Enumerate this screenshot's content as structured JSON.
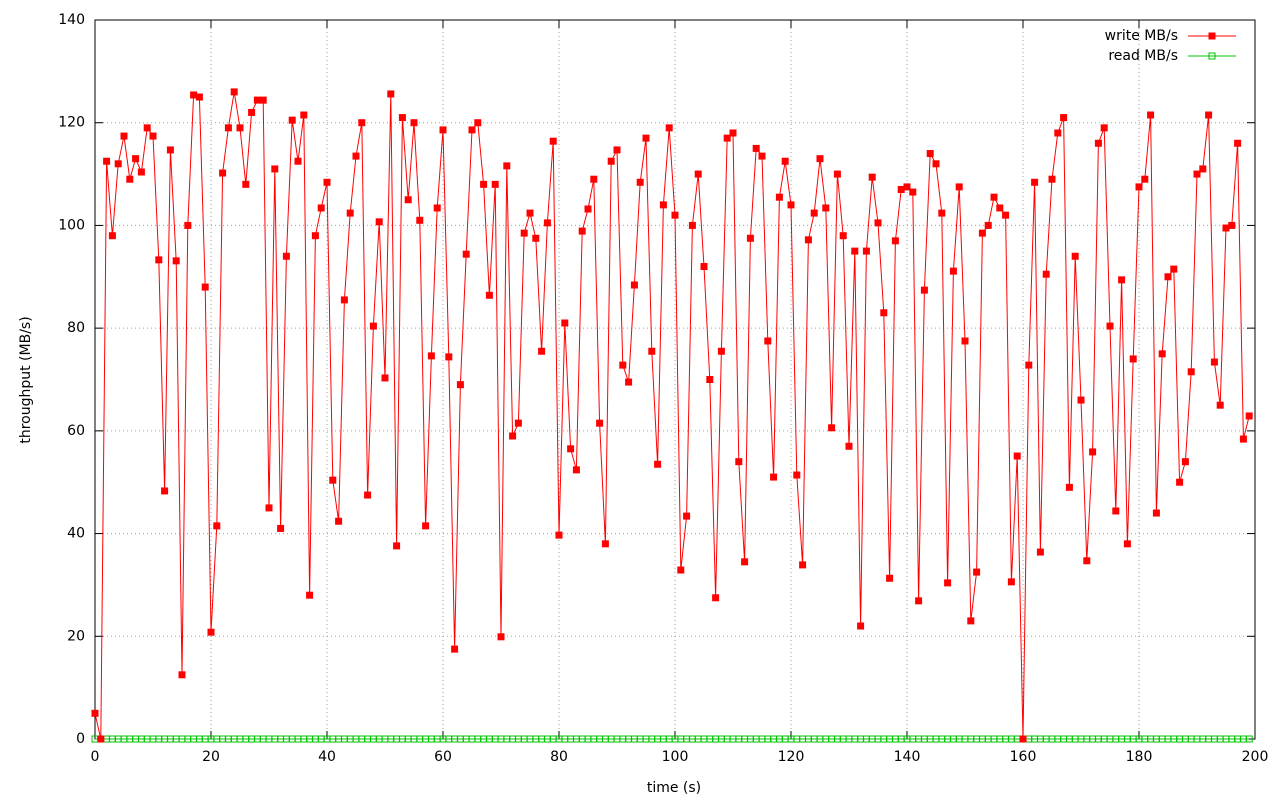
{
  "chart_data": {
    "type": "line",
    "xlabel": "time (s)",
    "ylabel": "throughput (MB/s)",
    "xlim": [
      0,
      200
    ],
    "xticks": [
      0,
      20,
      40,
      60,
      80,
      100,
      120,
      140,
      160,
      180,
      200
    ],
    "ylim": [
      0,
      140
    ],
    "yticks": [
      0,
      20,
      40,
      60,
      80,
      100,
      120,
      140
    ],
    "grid": true,
    "legend": "top-right",
    "x": [
      0,
      1,
      2,
      3,
      4,
      5,
      6,
      7,
      8,
      9,
      10,
      11,
      12,
      13,
      14,
      15,
      16,
      17,
      18,
      19,
      20,
      21,
      22,
      23,
      24,
      25,
      26,
      27,
      28,
      29,
      30,
      31,
      32,
      33,
      34,
      35,
      36,
      37,
      38,
      39,
      40,
      41,
      42,
      43,
      44,
      45,
      46,
      47,
      48,
      49,
      50,
      51,
      52,
      53,
      54,
      55,
      56,
      57,
      58,
      59,
      60,
      61,
      62,
      63,
      64,
      65,
      66,
      67,
      68,
      69,
      70,
      71,
      72,
      73,
      74,
      75,
      76,
      77,
      78,
      79,
      80,
      81,
      82,
      83,
      84,
      85,
      86,
      87,
      88,
      89,
      90,
      91,
      92,
      93,
      94,
      95,
      96,
      97,
      98,
      99,
      100,
      101,
      102,
      103,
      104,
      105,
      106,
      107,
      108,
      109,
      110,
      111,
      112,
      113,
      114,
      115,
      116,
      117,
      118,
      119,
      120,
      121,
      122,
      123,
      124,
      125,
      126,
      127,
      128,
      129,
      130,
      131,
      132,
      133,
      134,
      135,
      136,
      137,
      138,
      139,
      140,
      141,
      142,
      143,
      144,
      145,
      146,
      147,
      148,
      149,
      150,
      151,
      152,
      153,
      154,
      155,
      156,
      157,
      158,
      159,
      160,
      161,
      162,
      163,
      164,
      165,
      166,
      167,
      168,
      169,
      170,
      171,
      172,
      173,
      174,
      175,
      176,
      177,
      178,
      179,
      180,
      181,
      182,
      183,
      184,
      185,
      186,
      187,
      188,
      189,
      190,
      191,
      192,
      193,
      194,
      195,
      196,
      197,
      198,
      199
    ],
    "series": [
      {
        "name": "write MB/s",
        "color": "#ff0000",
        "marker": "filled-square",
        "values": [
          5,
          0,
          112.5,
          98,
          112,
          117.4,
          109,
          113,
          110.4,
          119,
          117.4,
          93.3,
          48.3,
          114.7,
          93.1,
          12.5,
          100,
          125.4,
          125,
          88,
          20.8,
          41.5,
          110.2,
          119,
          126,
          119,
          108,
          122,
          124.4,
          124.4,
          45,
          111,
          41,
          94,
          120.5,
          112.5,
          121.5,
          28,
          98,
          103.4,
          108.4,
          50.4,
          42.4,
          85.5,
          102.4,
          113.5,
          120,
          47.5,
          80.4,
          100.7,
          70.3,
          125.6,
          37.6,
          121,
          105,
          120,
          101,
          41.5,
          74.6,
          103.4,
          118.6,
          74.4,
          17.5,
          69,
          94.4,
          118.6,
          120,
          108,
          86.4,
          108,
          19.9,
          111.6,
          59,
          61.5,
          98.5,
          102.4,
          97.5,
          75.5,
          100.5,
          116.4,
          39.7,
          81,
          56.5,
          52.4,
          98.9,
          103.2,
          109,
          61.5,
          38,
          112.5,
          114.7,
          72.8,
          69.5,
          88.4,
          108.4,
          117,
          75.5,
          53.5,
          104,
          119,
          102,
          32.9,
          43.4,
          100,
          110,
          92,
          70,
          27.5,
          75.5,
          117,
          118,
          54,
          34.5,
          97.5,
          115,
          113.5,
          77.5,
          51,
          105.5,
          112.5,
          104,
          51.4,
          33.9,
          97.2,
          102.4,
          113,
          103.4,
          60.6,
          110,
          98,
          57,
          95,
          22,
          95,
          109.4,
          100.5,
          83,
          31.3,
          97,
          107,
          107.5,
          106.5,
          26.9,
          87.4,
          114,
          112,
          102.4,
          30.4,
          91.1,
          107.5,
          77.5,
          23,
          32.5,
          98.5,
          100,
          105.5,
          103.4,
          102,
          30.6,
          55.1,
          0,
          72.8,
          108.4,
          36.4,
          90.5,
          109,
          118,
          121,
          49,
          94,
          66,
          34.7,
          55.9,
          116,
          119,
          80.4,
          44.4,
          89.4,
          38,
          74,
          107.5,
          109,
          121.5,
          44,
          75,
          90,
          91.5,
          50,
          54,
          71.5,
          110,
          111,
          121.5,
          73.4,
          65,
          99.5,
          100,
          116,
          58.4,
          62.9
        ]
      },
      {
        "name": "read MB/s",
        "color": "#00c000",
        "marker": "open-square",
        "values": [
          0,
          0,
          0,
          0,
          0,
          0,
          0,
          0,
          0,
          0,
          0,
          0,
          0,
          0,
          0,
          0,
          0,
          0,
          0,
          0,
          0,
          0,
          0,
          0,
          0,
          0,
          0,
          0,
          0,
          0,
          0,
          0,
          0,
          0,
          0,
          0,
          0,
          0,
          0,
          0,
          0,
          0,
          0,
          0,
          0,
          0,
          0,
          0,
          0,
          0,
          0,
          0,
          0,
          0,
          0,
          0,
          0,
          0,
          0,
          0,
          0,
          0,
          0,
          0,
          0,
          0,
          0,
          0,
          0,
          0,
          0,
          0,
          0,
          0,
          0,
          0,
          0,
          0,
          0,
          0,
          0,
          0,
          0,
          0,
          0,
          0,
          0,
          0,
          0,
          0,
          0,
          0,
          0,
          0,
          0,
          0,
          0,
          0,
          0,
          0,
          0,
          0,
          0,
          0,
          0,
          0,
          0,
          0,
          0,
          0,
          0,
          0,
          0,
          0,
          0,
          0,
          0,
          0,
          0,
          0,
          0,
          0,
          0,
          0,
          0,
          0,
          0,
          0,
          0,
          0,
          0,
          0,
          0,
          0,
          0,
          0,
          0,
          0,
          0,
          0,
          0,
          0,
          0,
          0,
          0,
          0,
          0,
          0,
          0,
          0,
          0,
          0,
          0,
          0,
          0,
          0,
          0,
          0,
          0,
          0,
          0,
          0,
          0,
          0,
          0,
          0,
          0,
          0,
          0,
          0,
          0,
          0,
          0,
          0,
          0,
          0,
          0,
          0,
          0,
          0,
          0,
          0,
          0,
          0,
          0,
          0,
          0,
          0,
          0,
          0,
          0,
          0,
          0,
          0,
          0,
          0,
          0,
          0,
          0,
          0
        ]
      }
    ]
  }
}
